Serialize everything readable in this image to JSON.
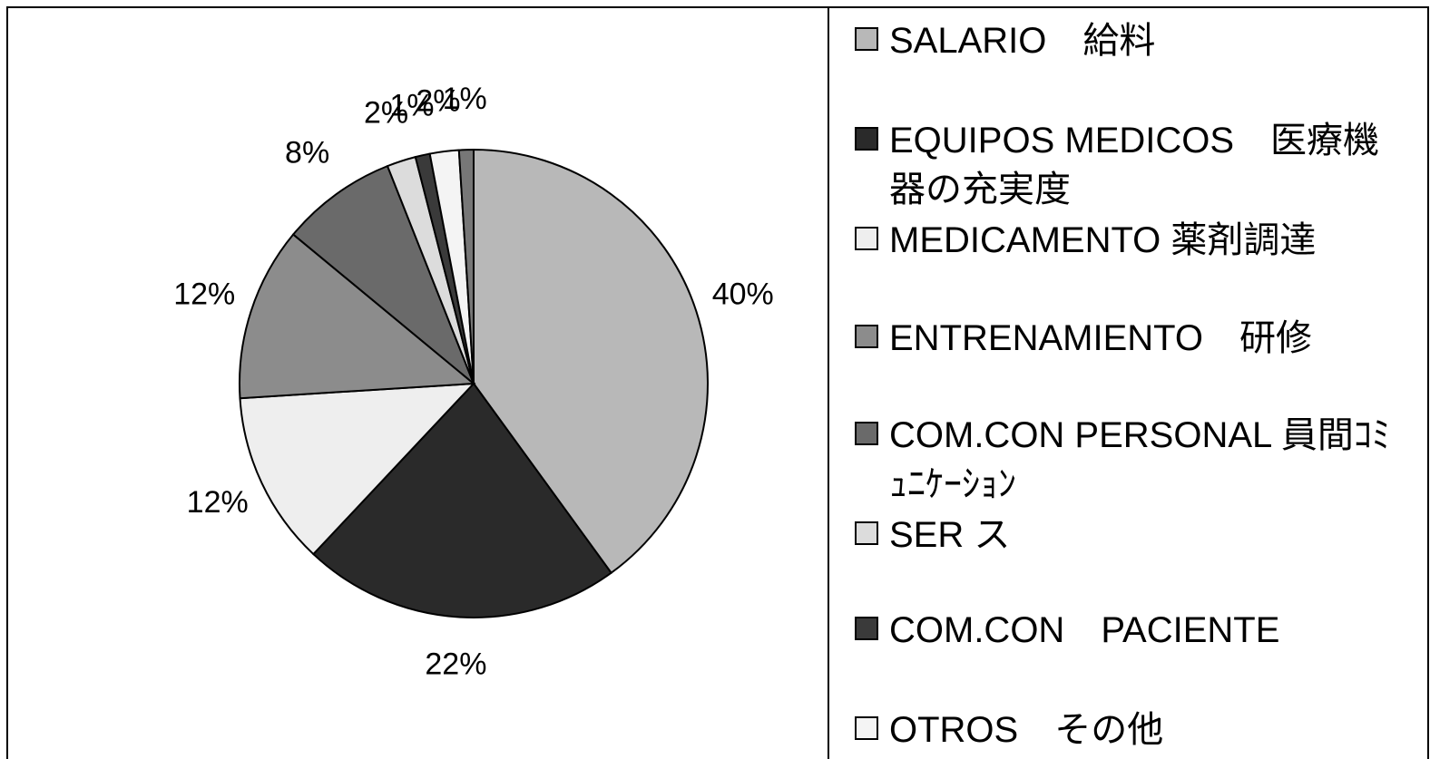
{
  "chart_data": {
    "type": "pie",
    "categories": [
      "SALARIO　給料",
      "EQUIPOS MEDICOS　医療機器の充実度",
      "MEDICAMENTO 薬剤調達",
      "ENTRENAMIENTO　研修",
      "COM.CON PERSONAL 員間ｺﾐｭﾆｹｰｼｮﾝ",
      "SER ス",
      "COM.CON　PACIENTE",
      "OTROS　その他",
      null
    ],
    "values": [
      40,
      22,
      12,
      12,
      8,
      2,
      1,
      2,
      1
    ],
    "value_labels": [
      "40%",
      "22%",
      "12%",
      "12%",
      "8%",
      "2%",
      "1%",
      "2%",
      "1%"
    ],
    "colors": [
      "#b8b8b8",
      "#2a2a2a",
      "#eeeeee",
      "#8c8c8c",
      "#6a6a6a",
      "#dcdcdc",
      "#3a3a3a",
      "#f4f4f4",
      "#777777"
    ]
  }
}
